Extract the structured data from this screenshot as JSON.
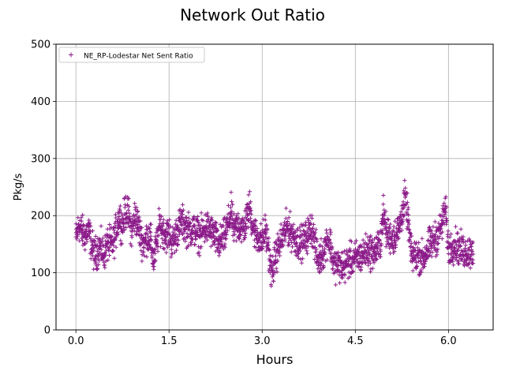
{
  "chart_data": {
    "type": "scatter",
    "title": "Network Out Ratio",
    "xlabel": "Hours",
    "ylabel": "Pkg/s",
    "xlim": [
      -0.32,
      6.72
    ],
    "ylim": [
      0,
      500
    ],
    "xticks": [
      0.0,
      1.5,
      3.0,
      4.5,
      6.0
    ],
    "xtick_labels": [
      "0.0",
      "1.5",
      "3.0",
      "4.5",
      "6.0"
    ],
    "yticks": [
      0,
      100,
      200,
      300,
      400,
      500
    ],
    "ytick_labels": [
      "0",
      "100",
      "200",
      "300",
      "400",
      "500"
    ],
    "grid": true,
    "legend_position": "upper-left",
    "series": [
      {
        "name": "NE_RP-Lodestar Net Sent Ratio",
        "marker": "+",
        "color": "#8B1A89",
        "x_start": 0.0,
        "x_end": 6.4,
        "samples_per_hour": 360,
        "envelope": [
          [
            0.0,
            160
          ],
          [
            0.05,
            185
          ],
          [
            0.1,
            170
          ],
          [
            0.15,
            165
          ],
          [
            0.2,
            175
          ],
          [
            0.25,
            150
          ],
          [
            0.3,
            130
          ],
          [
            0.35,
            140
          ],
          [
            0.4,
            145
          ],
          [
            0.45,
            130
          ],
          [
            0.5,
            150
          ],
          [
            0.55,
            150
          ],
          [
            0.6,
            150
          ],
          [
            0.65,
            175
          ],
          [
            0.7,
            200
          ],
          [
            0.75,
            180
          ],
          [
            0.8,
            210
          ],
          [
            0.85,
            200
          ],
          [
            0.9,
            170
          ],
          [
            0.95,
            200
          ],
          [
            1.0,
            185
          ],
          [
            1.05,
            160
          ],
          [
            1.1,
            150
          ],
          [
            1.15,
            165
          ],
          [
            1.2,
            160
          ],
          [
            1.25,
            120
          ],
          [
            1.3,
            150
          ],
          [
            1.35,
            185
          ],
          [
            1.4,
            175
          ],
          [
            1.45,
            165
          ],
          [
            1.5,
            170
          ],
          [
            1.55,
            150
          ],
          [
            1.6,
            165
          ],
          [
            1.7,
            190
          ],
          [
            1.8,
            175
          ],
          [
            1.9,
            175
          ],
          [
            2.0,
            165
          ],
          [
            2.1,
            180
          ],
          [
            2.2,
            170
          ],
          [
            2.3,
            150
          ],
          [
            2.4,
            165
          ],
          [
            2.5,
            205
          ],
          [
            2.55,
            170
          ],
          [
            2.6,
            185
          ],
          [
            2.7,
            175
          ],
          [
            2.8,
            215
          ],
          [
            2.85,
            180
          ],
          [
            2.9,
            165
          ],
          [
            3.0,
            155
          ],
          [
            3.05,
            175
          ],
          [
            3.1,
            145
          ],
          [
            3.15,
            95
          ],
          [
            3.2,
            120
          ],
          [
            3.25,
            140
          ],
          [
            3.3,
            155
          ],
          [
            3.4,
            180
          ],
          [
            3.5,
            165
          ],
          [
            3.6,
            150
          ],
          [
            3.7,
            160
          ],
          [
            3.8,
            180
          ],
          [
            3.9,
            120
          ],
          [
            4.0,
            140
          ],
          [
            4.05,
            160
          ],
          [
            4.1,
            150
          ],
          [
            4.15,
            115
          ],
          [
            4.2,
            115
          ],
          [
            4.3,
            110
          ],
          [
            4.4,
            120
          ],
          [
            4.5,
            125
          ],
          [
            4.6,
            130
          ],
          [
            4.7,
            140
          ],
          [
            4.8,
            135
          ],
          [
            4.9,
            150
          ],
          [
            4.95,
            205
          ],
          [
            5.0,
            170
          ],
          [
            5.1,
            160
          ],
          [
            5.2,
            175
          ],
          [
            5.3,
            230
          ],
          [
            5.35,
            195
          ],
          [
            5.4,
            130
          ],
          [
            5.5,
            130
          ],
          [
            5.6,
            125
          ],
          [
            5.7,
            150
          ],
          [
            5.8,
            160
          ],
          [
            5.9,
            185
          ],
          [
            5.95,
            215
          ],
          [
            6.0,
            140
          ],
          [
            6.1,
            150
          ],
          [
            6.2,
            140
          ],
          [
            6.3,
            135
          ],
          [
            6.4,
            140
          ]
        ],
        "noise_amplitude": 22
      }
    ]
  }
}
